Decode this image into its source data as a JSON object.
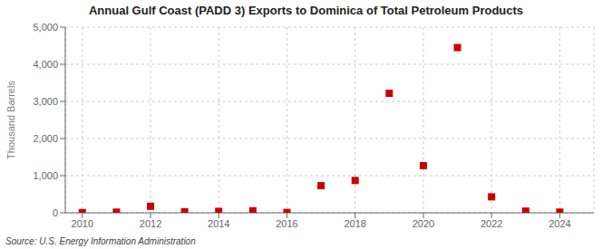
{
  "chart_data": {
    "type": "scatter",
    "title": "Annual Gulf Coast (PADD 3) Exports to Dominica of Total Petroleum Products",
    "ylabel": "Thousand Barrels",
    "source": "Source: U.S. Energy Information Administration",
    "x": [
      2010,
      2011,
      2012,
      2013,
      2014,
      2015,
      2016,
      2017,
      2018,
      2019,
      2020,
      2021,
      2022,
      2023,
      2024
    ],
    "values": [
      5,
      18,
      175,
      28,
      38,
      55,
      8,
      730,
      870,
      3220,
      1270,
      4450,
      430,
      45,
      18
    ],
    "color": "#cc0000",
    "marker": "square",
    "xlim": [
      2009.5,
      2025.0
    ],
    "ylim": [
      0,
      5000
    ],
    "xticks": [
      2010,
      2012,
      2014,
      2016,
      2018,
      2020,
      2022,
      2024
    ],
    "yticks": [
      0,
      {
        "value": 1000,
        "label": "1,000"
      },
      {
        "value": 2000,
        "label": "2,000"
      },
      {
        "value": 3000,
        "label": "3,000"
      },
      {
        "value": 4000,
        "label": "4,000"
      },
      {
        "value": 5000,
        "label": "5,000"
      }
    ],
    "grid": true
  }
}
